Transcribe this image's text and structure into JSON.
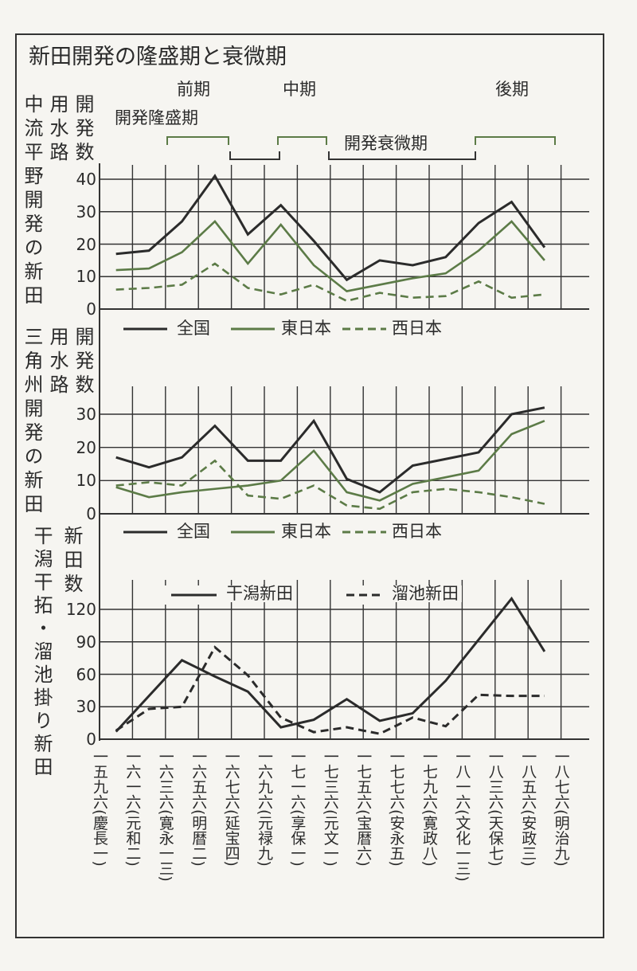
{
  "title": "新田開発の隆盛期と衰微期",
  "periods": {
    "early": "前期",
    "middle": "中期",
    "late": "後期",
    "boom": "開発隆盛期",
    "decline": "開発衰微期"
  },
  "colors": {
    "national": "#2b2b2b",
    "east": "#5c7b47",
    "west": "#5c7b47",
    "line": "#333333"
  },
  "x_tick_labels": [
    "一五九六(慶長一)",
    "一六一六(元和二)",
    "一六三六(寛永一三)",
    "一六五六(明暦二)",
    "一六七六(延宝四)",
    "一六九六(元禄九)",
    "一七一六(享保一)",
    "一七三六(元文一)",
    "一七五六(宝暦六)",
    "一七七六(安永五)",
    "一七九六(寛政八)",
    "一八一六(文化一三)",
    "一八三六(天保七)",
    "一八五六(安政三)",
    "一八七六(明治九)"
  ],
  "chart_data": [
    {
      "type": "line",
      "panel_label": "中流平野開発の新田",
      "ylabel": [
        "用水路",
        "開発数"
      ],
      "ylim": [
        0,
        40
      ],
      "yticks": [
        "0",
        "10",
        "20",
        "30",
        "40"
      ],
      "grid": true,
      "x_note": "values plotted between adjacent tick years",
      "legend": [
        "全国",
        "東日本",
        "西日本"
      ],
      "series": [
        {
          "name": "全国",
          "style": "solid",
          "color": "#2b2b2b",
          "values": [
            17,
            18,
            27,
            41,
            23,
            32,
            21,
            9,
            15,
            13.5,
            16,
            26.5,
            33,
            19
          ]
        },
        {
          "name": "東日本",
          "style": "solid",
          "color": "#5c7b47",
          "values": [
            12,
            12.5,
            17.5,
            27,
            14,
            26,
            13.5,
            5.5,
            7.5,
            9.5,
            11,
            18,
            27,
            15
          ]
        },
        {
          "name": "西日本",
          "style": "dashed",
          "color": "#5c7b47",
          "values": [
            6,
            6.5,
            7.5,
            14,
            6.5,
            4.5,
            7.5,
            2.5,
            5,
            3.5,
            4,
            8.5,
            3.5,
            4.5
          ]
        }
      ]
    },
    {
      "type": "line",
      "panel_label": "三角州開発の新田",
      "ylabel": [
        "用水路",
        "開発数"
      ],
      "ylim": [
        0,
        30
      ],
      "yticks": [
        "0",
        "10",
        "20",
        "30"
      ],
      "grid": true,
      "legend": [
        "全国",
        "東日本",
        "西日本"
      ],
      "series": [
        {
          "name": "全国",
          "style": "solid",
          "color": "#2b2b2b",
          "values": [
            17,
            14,
            17,
            26.5,
            16,
            16,
            28,
            10.5,
            6.5,
            14.5,
            16.5,
            18.5,
            30,
            32
          ]
        },
        {
          "name": "東日本",
          "style": "solid",
          "color": "#5c7b47",
          "values": [
            8,
            5,
            6.5,
            7.5,
            8.5,
            10,
            19,
            6.5,
            4,
            9,
            11,
            13,
            24,
            28
          ]
        },
        {
          "name": "西日本",
          "style": "dashed",
          "color": "#5c7b47",
          "values": [
            8.5,
            9.5,
            8.5,
            16,
            5.5,
            4.5,
            8.5,
            2.5,
            1.5,
            6.5,
            7.5,
            6.5,
            5,
            3
          ]
        }
      ]
    },
    {
      "type": "line",
      "panel_label": "干潟干拓・溜池掛り新田",
      "ylabel": [
        "新田数"
      ],
      "ylim": [
        0,
        120
      ],
      "yticks": [
        "0",
        "30",
        "60",
        "90",
        "120"
      ],
      "grid": true,
      "legend": [
        "干潟新田",
        "溜池新田"
      ],
      "series": [
        {
          "name": "干潟新田",
          "style": "solid",
          "color": "#2b2b2b",
          "values": [
            7,
            40,
            73,
            58,
            44,
            11,
            18,
            37,
            17,
            24,
            54,
            92,
            130,
            81
          ]
        },
        {
          "name": "溜池新田",
          "style": "dashed",
          "color": "#2b2b2b",
          "values": [
            8,
            28,
            30,
            85,
            59,
            20,
            6.5,
            11,
            5,
            20,
            12,
            41,
            40,
            40
          ]
        }
      ]
    }
  ]
}
